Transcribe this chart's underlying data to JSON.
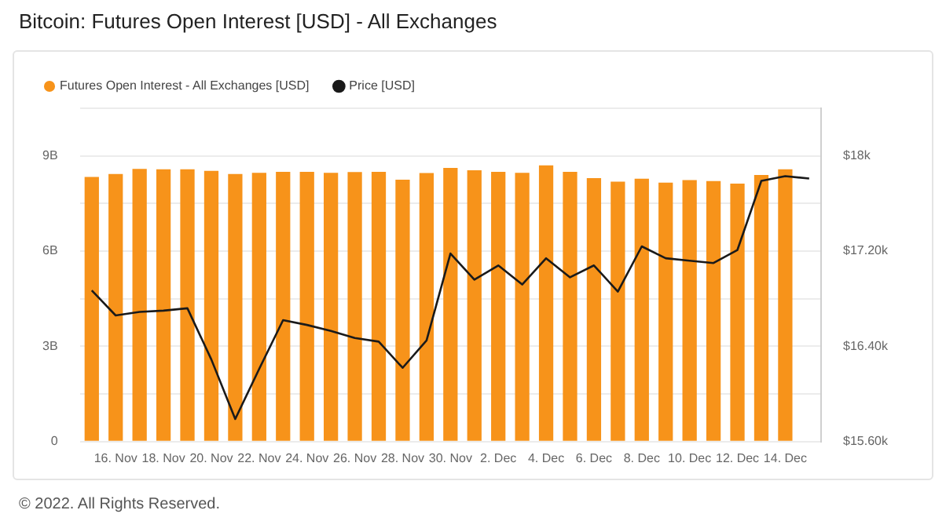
{
  "chart_data": {
    "type": "bar",
    "title": "Bitcoin: Futures Open Interest [USD] - All Exchanges",
    "categories": [
      null,
      "16. Nov",
      null,
      "18. Nov",
      null,
      "20. Nov",
      null,
      "22. Nov",
      null,
      "24. Nov",
      null,
      "26. Nov",
      null,
      "28. Nov",
      null,
      "30. Nov",
      null,
      "2. Dec",
      null,
      "4. Dec",
      null,
      "6. Dec",
      null,
      "8. Dec",
      null,
      "10. Dec",
      null,
      "12. Dec",
      null,
      "14. Dec",
      null
    ],
    "series": [
      {
        "name": "Futures Open Interest - All Exchanges [USD]",
        "color": "#f7931a",
        "values": [
          8.34,
          8.43,
          8.59,
          8.58,
          8.58,
          8.53,
          8.43,
          8.47,
          8.5,
          8.5,
          8.47,
          8.49,
          8.5,
          8.25,
          8.46,
          8.62,
          8.55,
          8.5,
          8.47,
          8.7,
          8.5,
          8.3,
          8.19,
          8.28,
          8.16,
          8.24,
          8.21,
          8.13,
          8.4,
          8.58,
          null
        ]
      },
      {
        "name": "Price [USD]",
        "type": "line",
        "axis": "y2",
        "color": "#1a1a1a",
        "values": [
          16870,
          16660,
          16690,
          16700,
          16720,
          16290,
          15790,
          16210,
          16620,
          16580,
          16530,
          16470,
          16440,
          16220,
          16450,
          17180,
          16960,
          17080,
          16920,
          17140,
          16980,
          17080,
          16860,
          17240,
          17140,
          17120,
          17100,
          17210,
          17790,
          17830,
          17810
        ]
      }
    ],
    "ylim": [
      0,
      10.5
    ],
    "yticks": [
      0,
      {
        "value": 1.5,
        "label": null
      },
      {
        "value": 3,
        "label": "3B"
      },
      {
        "value": 4.5,
        "label": null
      },
      {
        "value": 6,
        "label": "6B"
      },
      {
        "value": 7.5,
        "label": null
      },
      {
        "value": 9,
        "label": "9B"
      },
      {
        "value": 10.5,
        "label": null
      }
    ],
    "y2lim": [
      15600,
      18400
    ],
    "y2ticks": [
      {
        "value": 15600,
        "label": "$15.60k"
      },
      {
        "value": 16000,
        "label": null
      },
      {
        "value": 16400,
        "label": "$16.40k"
      },
      {
        "value": 16800,
        "label": null
      },
      {
        "value": 17200,
        "label": "$17.20k"
      },
      {
        "value": 17600,
        "label": null
      },
      {
        "value": 18000,
        "label": "$18k"
      },
      {
        "value": 18400,
        "label": null
      }
    ],
    "grid": "y",
    "legend": "top left",
    "marker": "none",
    "line_style": "solid",
    "annotations": [
      "© 2022. All Rights Reserved."
    ]
  }
}
